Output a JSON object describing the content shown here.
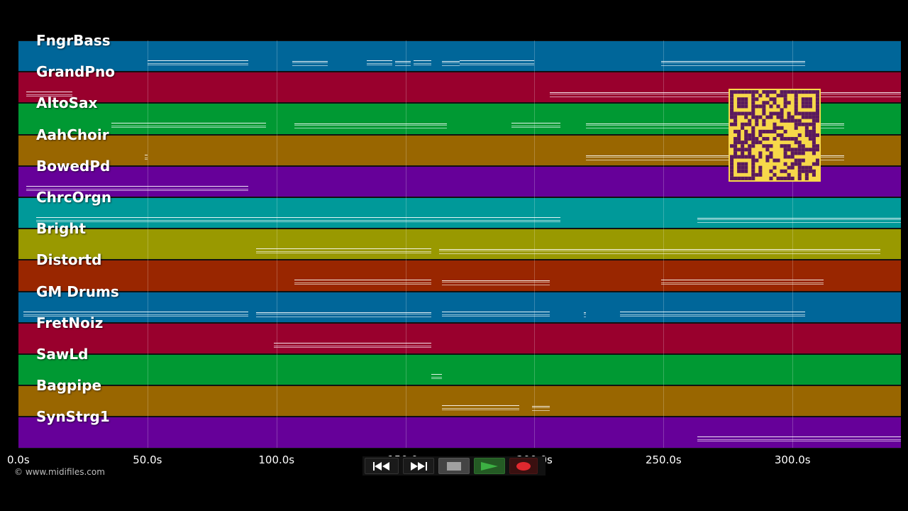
{
  "app": {
    "credit": "© www.midifiles.com"
  },
  "lanes": [
    {
      "name": "FngrBass",
      "color": "#006699"
    },
    {
      "name": "GrandPno",
      "color": "#99002d"
    },
    {
      "name": "AltoSax",
      "color": "#009933"
    },
    {
      "name": "AahChoir",
      "color": "#996600"
    },
    {
      "name": "BowedPd",
      "color": "#660099"
    },
    {
      "name": "ChrcOrgn",
      "color": "#009999"
    },
    {
      "name": "Bright",
      "color": "#999900"
    },
    {
      "name": "Distortd",
      "color": "#992600"
    },
    {
      "name": "GM Drums",
      "color": "#006699"
    },
    {
      "name": "FretNoiz",
      "color": "#99002d"
    },
    {
      "name": "SawLd",
      "color": "#009933"
    },
    {
      "name": "Bagpipe",
      "color": "#996600"
    },
    {
      "name": "SynStrg1",
      "color": "#660099"
    }
  ],
  "timeline": {
    "ticks": [
      "0.0s",
      "50.0s",
      "100.0s",
      "150.0s",
      "200.0s",
      "250.0s",
      "300.0s"
    ],
    "tick_seconds": [
      0,
      50,
      100,
      150,
      200,
      250,
      300
    ],
    "end_seconds": 342
  },
  "notes": [
    [
      [
        50,
        89
      ],
      [
        106,
        120
      ],
      [
        135,
        145
      ],
      [
        146,
        152
      ],
      [
        153,
        160
      ],
      [
        164,
        171
      ],
      [
        171,
        200
      ],
      [
        249,
        305
      ]
    ],
    [
      [
        3,
        21
      ],
      [
        206,
        342
      ]
    ],
    [
      [
        36,
        96
      ],
      [
        107,
        166
      ],
      [
        191,
        210
      ],
      [
        220,
        320
      ]
    ],
    [
      [
        49,
        50
      ],
      [
        220,
        320
      ]
    ],
    [
      [
        3,
        89
      ]
    ],
    [
      [
        7,
        210
      ],
      [
        263,
        342
      ]
    ],
    [
      [
        92,
        160
      ],
      [
        163,
        334
      ]
    ],
    [
      [
        107,
        160
      ],
      [
        164,
        206
      ],
      [
        249,
        312
      ]
    ],
    [
      [
        2,
        89
      ],
      [
        92,
        160
      ],
      [
        164,
        206
      ],
      [
        219,
        220
      ],
      [
        233,
        305
      ]
    ],
    [
      [
        99,
        160
      ]
    ],
    [
      [
        160,
        164
      ]
    ],
    [
      [
        164,
        194
      ],
      [
        199,
        206
      ]
    ],
    [
      [
        263,
        342
      ]
    ]
  ],
  "transport": {
    "rewind_icon": "rewind-icon",
    "fast_forward_icon": "fast-forward-icon",
    "stop_icon": "stop-icon",
    "play_icon": "play-icon",
    "record_icon": "record-icon",
    "play_color": "#3cb043",
    "record_color": "#e0282e"
  },
  "qr": {
    "icon": "qr-code-icon",
    "fg": "#5a1a5e",
    "bg": "#f7d84a"
  }
}
